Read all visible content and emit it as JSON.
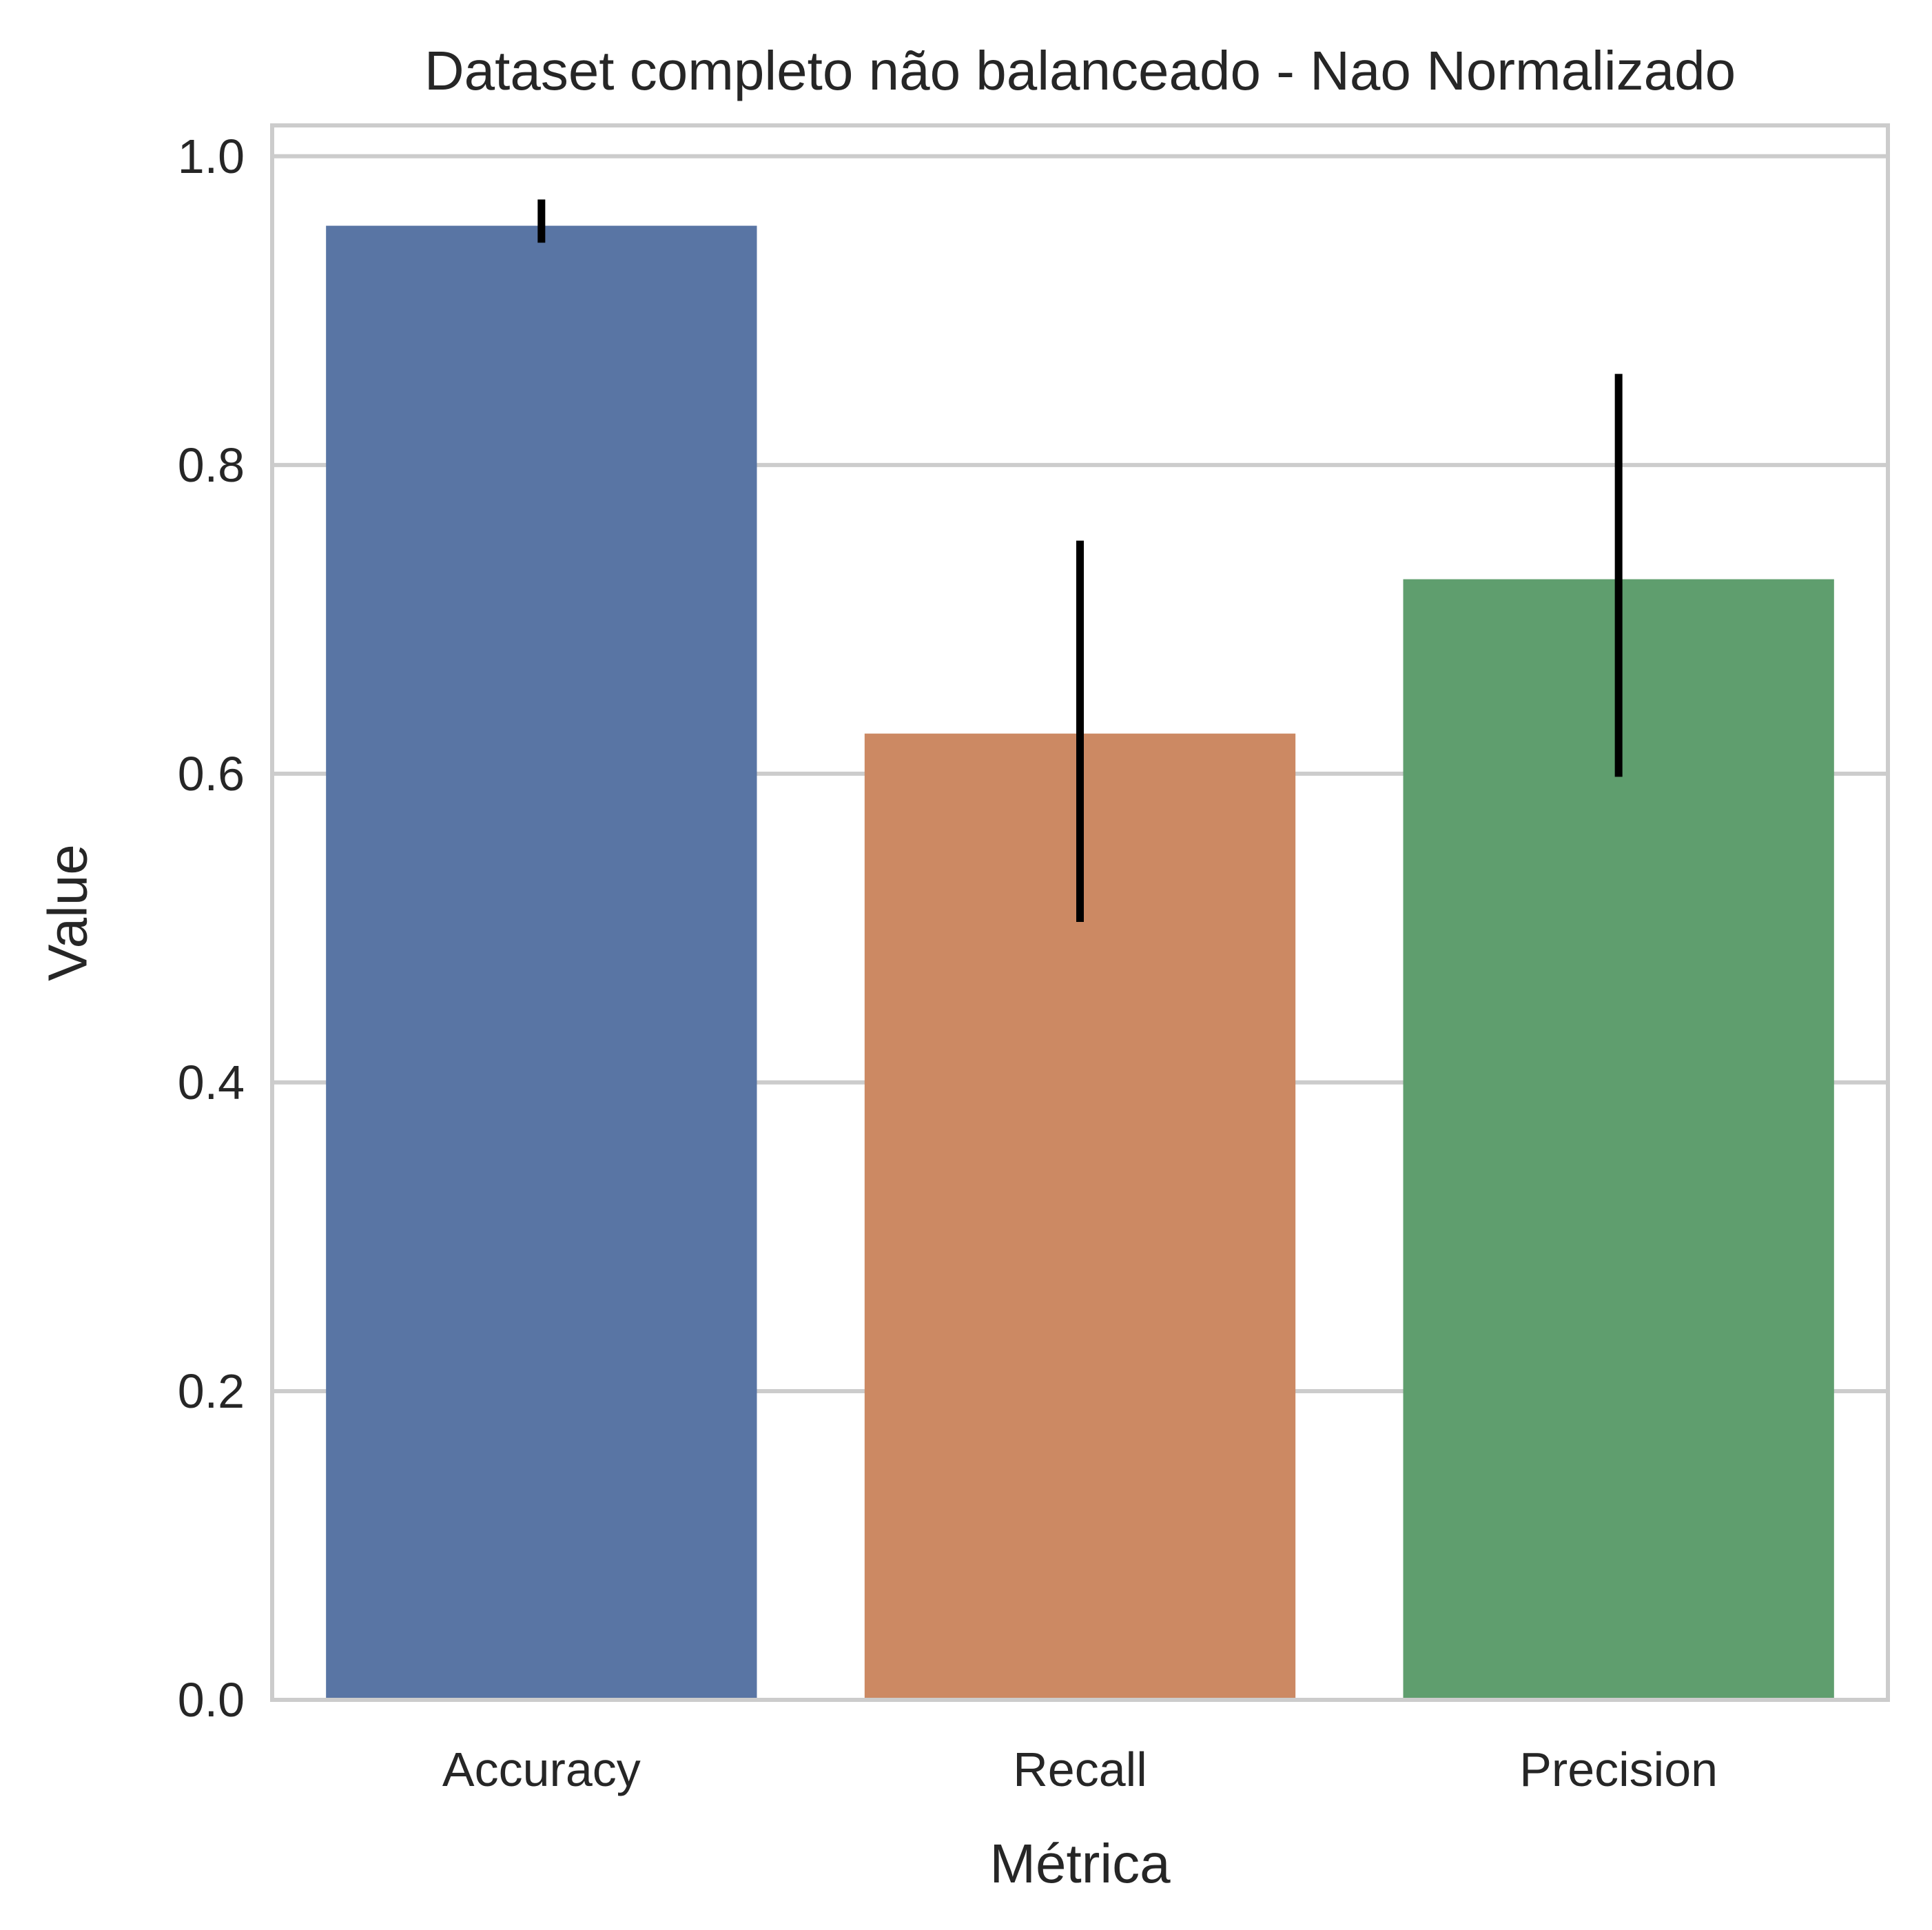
{
  "chart_data": {
    "type": "bar",
    "title": "Dataset completo não balanceado - Nao Normalizado",
    "xlabel": "Métrica",
    "ylabel": "Value",
    "categories": [
      "Accuracy",
      "Recall",
      "Precision"
    ],
    "values": [
      0.955,
      0.626,
      0.726
    ],
    "error_bars": [
      {
        "low": 0.944,
        "high": 0.972
      },
      {
        "low": 0.504,
        "high": 0.751
      },
      {
        "low": 0.598,
        "high": 0.859
      }
    ],
    "colors": [
      "#5975a4",
      "#cc8963",
      "#5f9e6e"
    ],
    "error_bar_color": "#000000",
    "ylim": [
      0.0,
      1.02
    ],
    "yticks": [
      0.0,
      0.2,
      0.4,
      0.6,
      0.8,
      1.0
    ],
    "ytick_labels": [
      "0.0",
      "0.2",
      "0.4",
      "0.6",
      "0.8",
      "1.0"
    ],
    "grid": "horizontal",
    "grid_color": "#cccccc",
    "legend": "none"
  }
}
